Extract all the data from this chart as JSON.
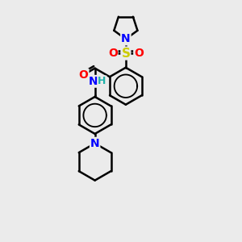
{
  "background_color": "#ebebeb",
  "atom_colors": {
    "C": "#000000",
    "N": "#0000ff",
    "O": "#ff0000",
    "S": "#cccc00",
    "H": "#20b2aa"
  },
  "bond_color": "#000000",
  "bond_width": 1.8,
  "figsize": [
    3.0,
    3.0
  ],
  "dpi": 100,
  "xlim": [
    0,
    10
  ],
  "ylim": [
    0,
    10
  ]
}
